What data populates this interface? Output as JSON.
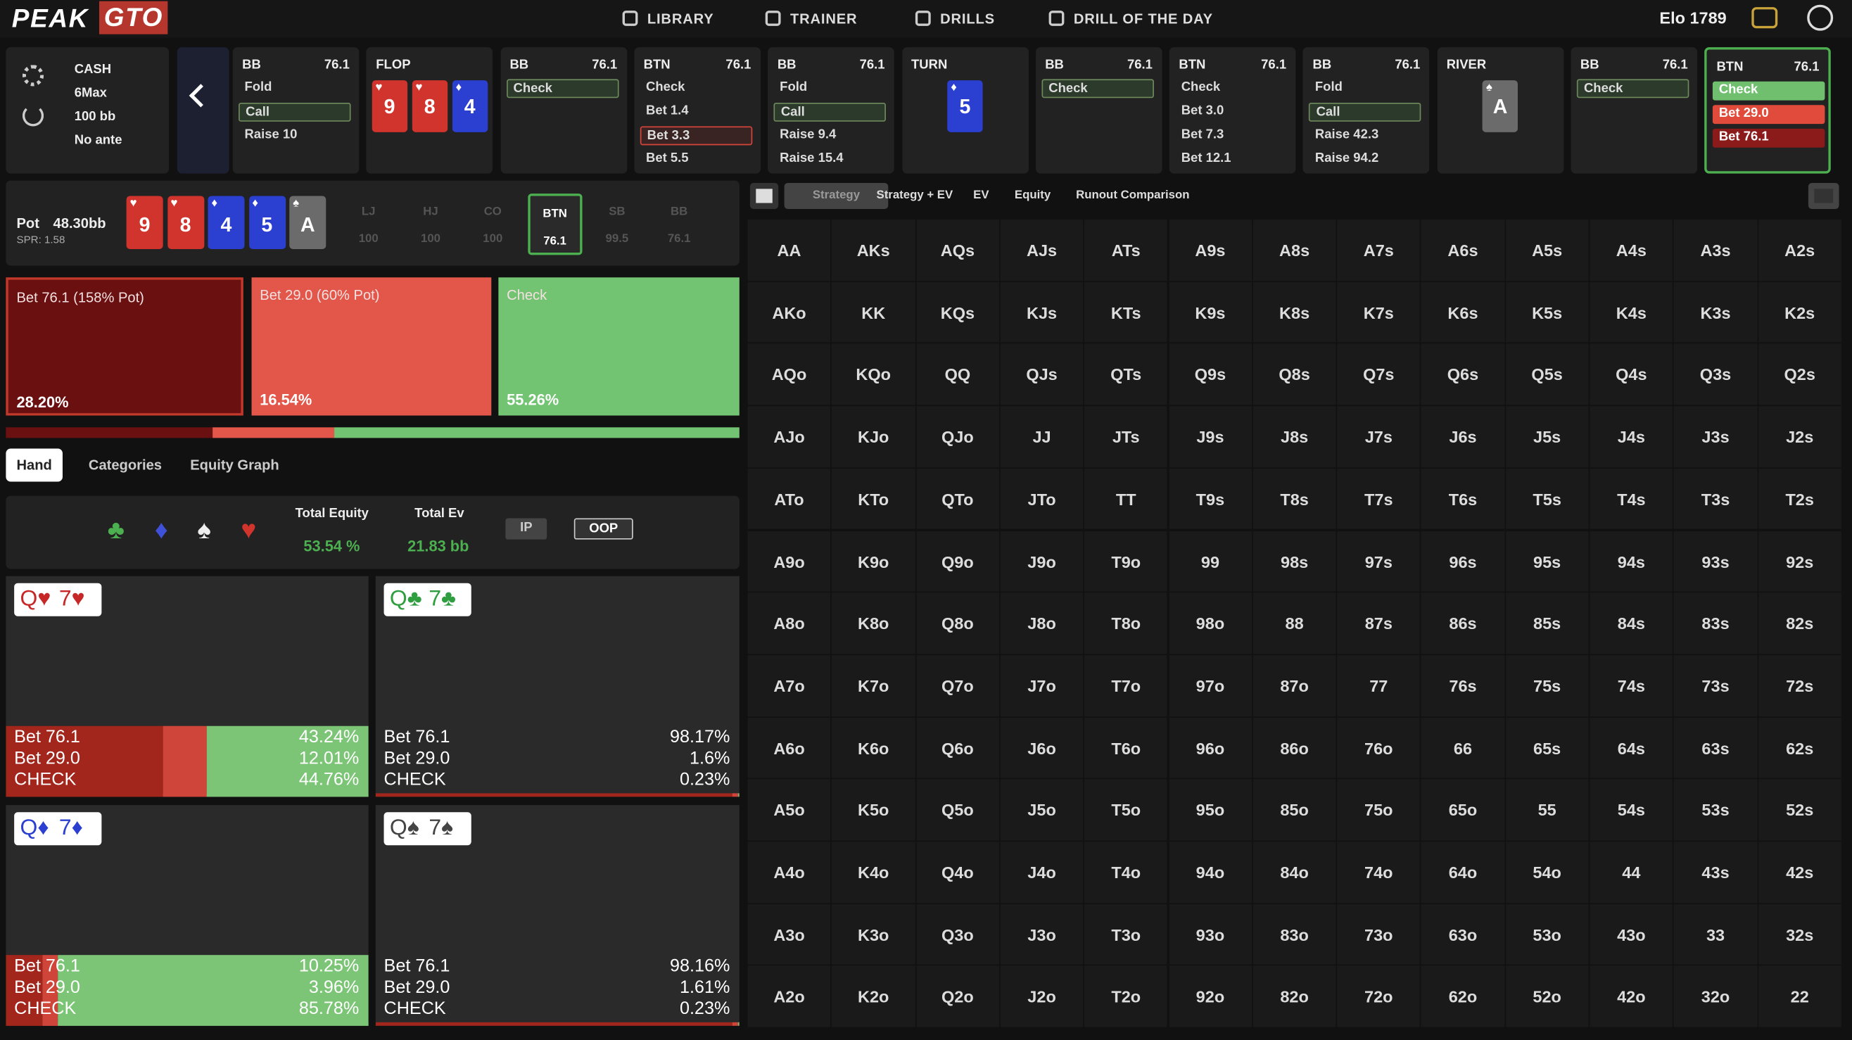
{
  "nav": {
    "logo": [
      "PEAK",
      "GTO"
    ],
    "items": [
      "LIBRARY",
      "TRAINER",
      "DRILLS",
      "DRILL OF THE DAY"
    ],
    "elo": "Elo 1789"
  },
  "settings": [
    "CASH",
    "6Max",
    "100 bb",
    "No ante"
  ],
  "columns": [
    {
      "pos": "BB",
      "stack": "76.1",
      "options": [
        {
          "text": "Fold",
          "style": "plain"
        },
        {
          "text": "Call",
          "style": "outlined"
        },
        {
          "text": "Raise 10",
          "style": "plain"
        }
      ]
    },
    {
      "street": "FLOP",
      "cards": [
        {
          "rank": "9",
          "suit": "♥",
          "color": "#d0342c"
        },
        {
          "rank": "8",
          "suit": "♥",
          "color": "#d0342c"
        },
        {
          "rank": "4",
          "suit": "♦",
          "color": "#2b3fd1"
        }
      ]
    },
    {
      "pos": "BB",
      "stack": "76.1",
      "options": [
        {
          "text": "Check",
          "style": "outlined"
        }
      ]
    },
    {
      "pos": "BTN",
      "stack": "76.1",
      "options": [
        {
          "text": "Check",
          "style": "plain"
        },
        {
          "text": "Bet 1.4",
          "style": "plain"
        },
        {
          "text": "Bet 3.3",
          "style": "selected"
        },
        {
          "text": "Bet 5.5",
          "style": "plain"
        }
      ]
    },
    {
      "pos": "BB",
      "stack": "76.1",
      "options": [
        {
          "text": "Fold",
          "style": "plain"
        },
        {
          "text": "Call",
          "style": "outlined"
        },
        {
          "text": "Raise 9.4",
          "style": "plain"
        },
        {
          "text": "Raise 15.4",
          "style": "plain"
        }
      ]
    },
    {
      "street": "TURN",
      "cards": [
        {
          "rank": "5",
          "suit": "♦",
          "color": "#2b3fd1"
        }
      ]
    },
    {
      "pos": "BB",
      "stack": "76.1",
      "options": [
        {
          "text": "Check",
          "style": "outlined"
        }
      ]
    },
    {
      "pos": "BTN",
      "stack": "76.1",
      "options": [
        {
          "text": "Check",
          "style": "plain"
        },
        {
          "text": "Bet 3.0",
          "style": "plain"
        },
        {
          "text": "Bet 7.3",
          "style": "plain"
        },
        {
          "text": "Bet 12.1",
          "style": "plain"
        }
      ]
    },
    {
      "pos": "BB",
      "stack": "76.1",
      "options": [
        {
          "text": "Fold",
          "style": "plain"
        },
        {
          "text": "Call",
          "style": "outlined"
        },
        {
          "text": "Raise 42.3",
          "style": "plain"
        },
        {
          "text": "Raise 94.2",
          "style": "plain"
        }
      ]
    },
    {
      "street": "RIVER",
      "cards": [
        {
          "rank": "A",
          "suit": "♠",
          "color": "#6b6b6b"
        }
      ]
    },
    {
      "pos": "BB",
      "stack": "76.1",
      "options": [
        {
          "text": "Check",
          "style": "outlined"
        }
      ]
    },
    {
      "pos": "BTN",
      "stack": "76.1",
      "active": true,
      "options": [
        {
          "text": "Check",
          "style": "green"
        },
        {
          "text": "Bet 29.0",
          "style": "red"
        },
        {
          "text": "Bet 76.1",
          "style": "darkred"
        }
      ]
    }
  ],
  "pot": {
    "label": "Pot",
    "value": "48.30bb",
    "spr": "SPR: 1.58",
    "board": [
      {
        "rank": "9",
        "suit": "♥",
        "color": "#d0342c"
      },
      {
        "rank": "8",
        "suit": "♥",
        "color": "#d0342c"
      },
      {
        "rank": "4",
        "suit": "♦",
        "color": "#2b3fd1"
      },
      {
        "rank": "5",
        "suit": "♦",
        "color": "#2b3fd1"
      },
      {
        "rank": "A",
        "suit": "♠",
        "color": "#6b6b6b"
      }
    ],
    "positions": [
      {
        "pos": "LJ",
        "stack": "100"
      },
      {
        "pos": "HJ",
        "stack": "100"
      },
      {
        "pos": "CO",
        "stack": "100"
      },
      {
        "pos": "BTN",
        "stack": "76.1",
        "active": true
      },
      {
        "pos": "SB",
        "stack": "99.5"
      },
      {
        "pos": "BB",
        "stack": "76.1"
      }
    ]
  },
  "actions": [
    {
      "text": "Bet 76.1 (158% Pot)",
      "value": 28.2,
      "label": "28.20%",
      "color": "#6a1010"
    },
    {
      "text": "Bet 29.0 (60% Pot)",
      "value": 16.54,
      "label": "16.54%",
      "color": "#e2574a"
    },
    {
      "text": "Check",
      "value": 55.26,
      "label": "55.26%",
      "color": "#72c472"
    }
  ],
  "tabs": [
    "Hand",
    "Categories",
    "Equity Graph"
  ],
  "equity": {
    "suits": [
      {
        "text": "♣",
        "color": "#4caf50"
      },
      {
        "text": "♦",
        "color": "#3f51d8"
      },
      {
        "text": "♠",
        "color": "#eeeeee"
      },
      {
        "text": "♥",
        "color": "#d0342c"
      }
    ],
    "total_equity_label": "Total Equity",
    "total_equity": "53.54 %",
    "total_ev_label": "Total Ev",
    "total_ev": "21.83 bb",
    "buttons": [
      "IP",
      "OOP"
    ]
  },
  "hands": [
    {
      "cards": [
        {
          "text": "Q♥",
          "color": "#c62828"
        },
        {
          "text": "7♥",
          "color": "#c62828"
        }
      ],
      "highlighted": true,
      "rows": [
        {
          "action": "Bet 76.1",
          "value": 43.24,
          "label": "43.24%"
        },
        {
          "action": "Bet 29.0",
          "value": 12.01,
          "label": "12.01%"
        },
        {
          "action": "CHECK",
          "value": 44.76,
          "label": "44.76%"
        }
      ]
    },
    {
      "cards": [
        {
          "text": "Q♣",
          "color": "#2e9e3e"
        },
        {
          "text": "7♣",
          "color": "#2e9e3e"
        }
      ],
      "highlighted": false,
      "rows": [
        {
          "action": "Bet 76.1",
          "value": 98.17,
          "label": "98.17%"
        },
        {
          "action": "Bet 29.0",
          "value": 1.6,
          "label": "1.6%"
        },
        {
          "action": "CHECK",
          "value": 0.23,
          "label": "0.23%"
        }
      ]
    },
    {
      "cards": [
        {
          "text": "Q♦",
          "color": "#2b3fd1"
        },
        {
          "text": "7♦",
          "color": "#2b3fd1"
        }
      ],
      "highlighted": true,
      "rows": [
        {
          "action": "Bet 76.1",
          "value": 10.25,
          "label": "10.25%"
        },
        {
          "action": "Bet 29.0",
          "value": 3.96,
          "label": "3.96%"
        },
        {
          "action": "CHECK",
          "value": 85.78,
          "label": "85.78%"
        }
      ]
    },
    {
      "cards": [
        {
          "text": "Q♠",
          "color": "#444444"
        },
        {
          "text": "7♠",
          "color": "#444444"
        }
      ],
      "highlighted": false,
      "rows": [
        {
          "action": "Bet 76.1",
          "value": 98.16,
          "label": "98.16%"
        },
        {
          "action": "Bet 29.0",
          "value": 1.61,
          "label": "1.61%"
        },
        {
          "action": "CHECK",
          "value": 0.23,
          "label": "0.23%"
        }
      ]
    }
  ],
  "strategy_tabs": [
    "Strategy",
    "Strategy + EV",
    "EV",
    "Equity",
    "Runout Comparison"
  ],
  "matrix": [
    [
      "AA",
      "AKs",
      "AQs",
      "AJs",
      "ATs",
      "A9s",
      "A8s",
      "A7s",
      "A6s",
      "A5s",
      "A4s",
      "A3s",
      "A2s"
    ],
    [
      "AKo",
      "KK",
      "KQs",
      "KJs",
      "KTs",
      "K9s",
      "K8s",
      "K7s",
      "K6s",
      "K5s",
      "K4s",
      "K3s",
      "K2s"
    ],
    [
      "AQo",
      "KQo",
      "QQ",
      "QJs",
      "QTs",
      "Q9s",
      "Q8s",
      "Q7s",
      "Q6s",
      "Q5s",
      "Q4s",
      "Q3s",
      "Q2s"
    ],
    [
      "AJo",
      "KJo",
      "QJo",
      "JJ",
      "JTs",
      "J9s",
      "J8s",
      "J7s",
      "J6s",
      "J5s",
      "J4s",
      "J3s",
      "J2s"
    ],
    [
      "ATo",
      "KTo",
      "QTo",
      "JTo",
      "TT",
      "T9s",
      "T8s",
      "T7s",
      "T6s",
      "T5s",
      "T4s",
      "T3s",
      "T2s"
    ],
    [
      "A9o",
      "K9o",
      "Q9o",
      "J9o",
      "T9o",
      "99",
      "98s",
      "97s",
      "96s",
      "95s",
      "94s",
      "93s",
      "92s"
    ],
    [
      "A8o",
      "K8o",
      "Q8o",
      "J8o",
      "T8o",
      "98o",
      "88",
      "87s",
      "86s",
      "85s",
      "84s",
      "83s",
      "82s"
    ],
    [
      "A7o",
      "K7o",
      "Q7o",
      "J7o",
      "T7o",
      "97o",
      "87o",
      "77",
      "76s",
      "75s",
      "74s",
      "73s",
      "72s"
    ],
    [
      "A6o",
      "K6o",
      "Q6o",
      "J6o",
      "T6o",
      "96o",
      "86o",
      "76o",
      "66",
      "65s",
      "64s",
      "63s",
      "62s"
    ],
    [
      "A5o",
      "K5o",
      "Q5o",
      "J5o",
      "T5o",
      "95o",
      "85o",
      "75o",
      "65o",
      "55",
      "54s",
      "53s",
      "52s"
    ],
    [
      "A4o",
      "K4o",
      "Q4o",
      "J4o",
      "T4o",
      "94o",
      "84o",
      "74o",
      "64o",
      "54o",
      "44",
      "43s",
      "42s"
    ],
    [
      "A3o",
      "K3o",
      "Q3o",
      "J3o",
      "T3o",
      "93o",
      "83o",
      "73o",
      "63o",
      "53o",
      "43o",
      "33",
      "32s"
    ],
    [
      "A2o",
      "K2o",
      "Q2o",
      "J2o",
      "T2o",
      "92o",
      "82o",
      "72o",
      "62o",
      "52o",
      "42o",
      "32o",
      "22"
    ]
  ]
}
